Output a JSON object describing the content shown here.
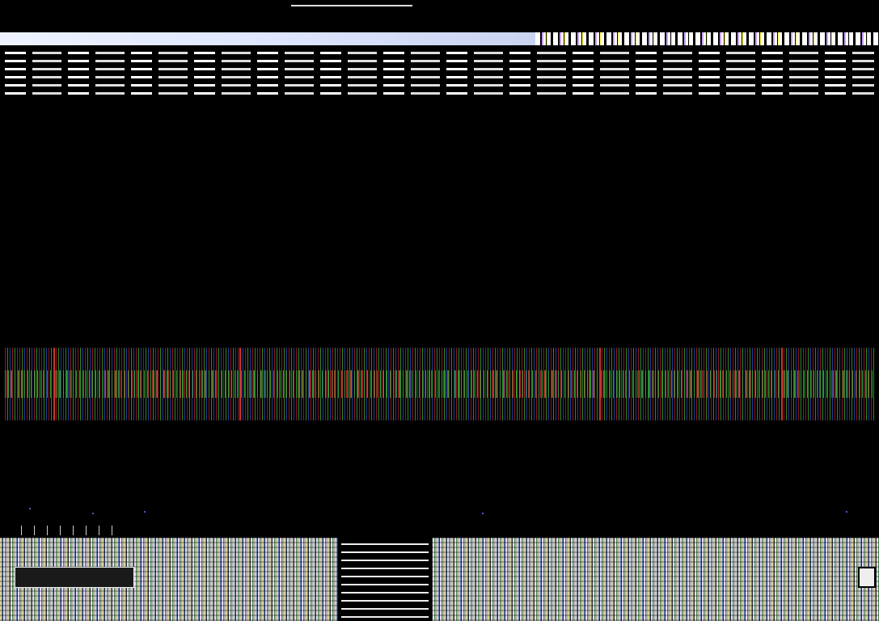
{
  "title": "",
  "number_column": [
    "",
    "",
    "",
    "",
    "",
    "",
    "",
    "",
    "",
    "",
    ""
  ],
  "colors": {
    "background": "#000000",
    "red_stripe": "#8b1a1a",
    "green_stripe": "#2a8a2a",
    "blue_stripe": "#2a3a9a",
    "scatter_dot": "#4a5acc"
  }
}
